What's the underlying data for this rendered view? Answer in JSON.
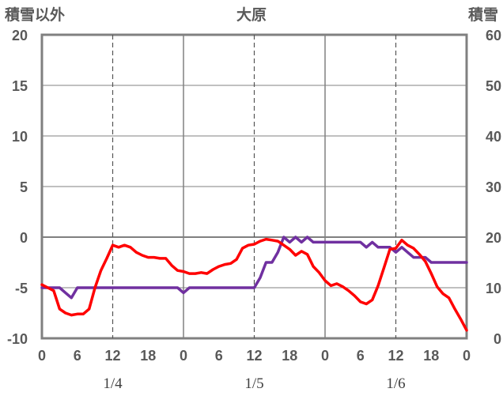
{
  "chart_data": {
    "type": "line",
    "title": "大原",
    "ylabel_left": "積雪以外",
    "ylabel_right": "積雪",
    "ylim_left": [
      -10,
      20
    ],
    "ylim_right": [
      0,
      60
    ],
    "yticks_left": [
      "20",
      "15",
      "10",
      "5",
      "0",
      "-5",
      "-10"
    ],
    "yticks_right": [
      "60",
      "50",
      "40",
      "30",
      "20",
      "10",
      "0"
    ],
    "xticks": [
      "0",
      "6",
      "12",
      "18",
      "0",
      "6",
      "12",
      "18",
      "0",
      "6",
      "12",
      "18",
      "0"
    ],
    "dates": [
      "1/4",
      "1/5",
      "1/6"
    ],
    "grid": true,
    "x_hours": [
      0,
      72
    ],
    "series": [
      {
        "axis": "left",
        "color": "#ff0000",
        "x": [
          0,
          1,
          2,
          3,
          4,
          5,
          6,
          7,
          8,
          9,
          10,
          11,
          12,
          13,
          14,
          15,
          16,
          17,
          18,
          19,
          20,
          21,
          22,
          23,
          24,
          25,
          26,
          27,
          28,
          29,
          30,
          31,
          32,
          33,
          34,
          35,
          36,
          37,
          38,
          39,
          40,
          41,
          42,
          43,
          44,
          45,
          46,
          47,
          48,
          49,
          50,
          51,
          52,
          53,
          54,
          55,
          56,
          57,
          58,
          59,
          60,
          61,
          62,
          63,
          64,
          65,
          66,
          67,
          68,
          69,
          70,
          71,
          72
        ],
        "values": [
          -4.7,
          -5.0,
          -5.3,
          -7.1,
          -7.5,
          -7.7,
          -7.6,
          -7.6,
          -7.1,
          -5.0,
          -3.3,
          -2.1,
          -0.8,
          -1.0,
          -0.8,
          -1.0,
          -1.5,
          -1.8,
          -2.0,
          -2.0,
          -2.1,
          -2.1,
          -2.8,
          -3.3,
          -3.4,
          -3.6,
          -3.6,
          -3.5,
          -3.6,
          -3.2,
          -2.9,
          -2.7,
          -2.6,
          -2.2,
          -1.1,
          -0.8,
          -0.7,
          -0.4,
          -0.2,
          -0.3,
          -0.4,
          -0.8,
          -1.2,
          -1.8,
          -1.4,
          -1.7,
          -2.9,
          -3.5,
          -4.3,
          -4.8,
          -4.6,
          -4.9,
          -5.3,
          -5.8,
          -6.4,
          -6.6,
          -6.2,
          -4.8,
          -3.0,
          -1.2,
          -1.1,
          -0.3,
          -0.8,
          -1.1,
          -1.7,
          -2.4,
          -3.6,
          -4.9,
          -5.6,
          -6.0,
          -7.1,
          -8.1,
          -9.2
        ]
      },
      {
        "axis": "right",
        "color": "#7030a0",
        "x": [
          0,
          1,
          2,
          3,
          4,
          5,
          6,
          7,
          8,
          9,
          10,
          11,
          12,
          13,
          14,
          15,
          16,
          17,
          18,
          19,
          20,
          21,
          22,
          23,
          24,
          25,
          26,
          27,
          28,
          29,
          30,
          31,
          32,
          33,
          34,
          35,
          36,
          37,
          38,
          39,
          40,
          41,
          42,
          43,
          44,
          45,
          46,
          47,
          48,
          49,
          50,
          51,
          52,
          53,
          54,
          55,
          56,
          57,
          58,
          59,
          60,
          61,
          62,
          63,
          64,
          65,
          66,
          67,
          68,
          69,
          70,
          71,
          72
        ],
        "values": [
          10,
          10,
          10,
          10,
          9,
          8,
          10,
          10,
          10,
          10,
          10,
          10,
          10,
          10,
          10,
          10,
          10,
          10,
          10,
          10,
          10,
          10,
          10,
          10,
          9,
          10,
          10,
          10,
          10,
          10,
          10,
          10,
          10,
          10,
          10,
          10,
          10,
          12,
          15,
          15,
          17,
          20,
          19,
          20,
          19,
          20,
          19,
          19,
          19,
          19,
          19,
          19,
          19,
          19,
          19,
          18,
          19,
          18,
          18,
          18,
          17,
          18,
          17,
          16,
          16,
          16,
          15,
          15,
          15,
          15,
          15,
          15,
          15
        ]
      }
    ]
  }
}
